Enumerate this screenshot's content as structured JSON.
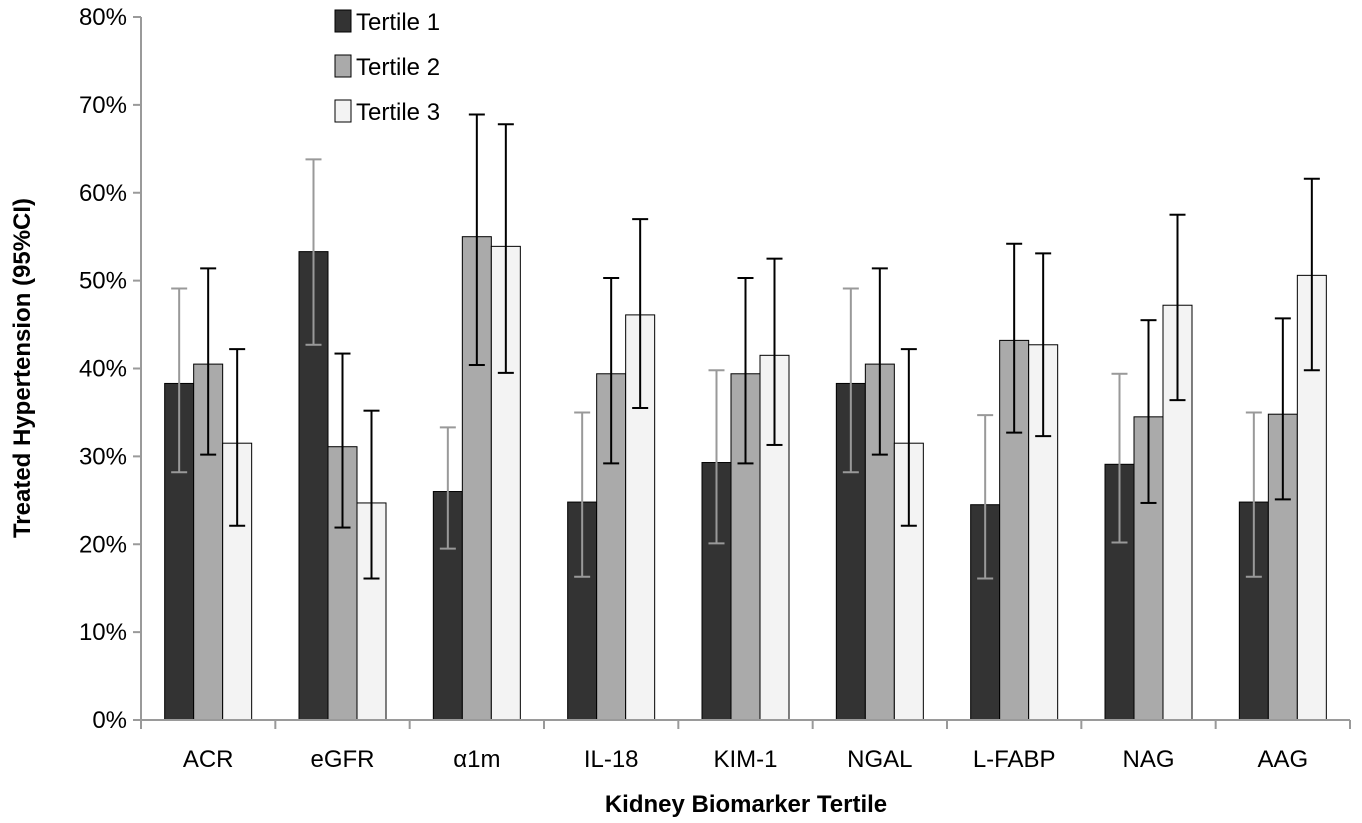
{
  "chart_data": {
    "type": "bar",
    "title": "",
    "xlabel": "Kidney Biomarker Tertile",
    "ylabel": "Treated Hypertension (95%CI)",
    "ylim": [
      0,
      80
    ],
    "yticks": [
      0,
      10,
      20,
      30,
      40,
      50,
      60,
      70,
      80
    ],
    "ytick_labels": [
      "0%",
      "10%",
      "20%",
      "30%",
      "40%",
      "50%",
      "60%",
      "70%",
      "80%"
    ],
    "categories": [
      "ACR",
      "eGFR",
      "α1m",
      "IL-18",
      "KIM-1",
      "NGAL",
      "L-FABP",
      "NAG",
      "AAG"
    ],
    "grid": false,
    "legend_position": "top-left",
    "series": [
      {
        "name": "Tertile 1",
        "color": "#333333",
        "error_color": "#999999",
        "values": [
          38.3,
          53.3,
          26.0,
          24.8,
          29.3,
          38.3,
          24.5,
          29.1,
          24.8
        ],
        "ci_low": [
          28.2,
          42.7,
          19.5,
          16.3,
          20.1,
          28.2,
          16.1,
          20.2,
          16.3
        ],
        "ci_high": [
          49.1,
          63.8,
          33.3,
          35.0,
          39.8,
          49.1,
          34.7,
          39.4,
          35.0
        ]
      },
      {
        "name": "Tertile 2",
        "color": "#aaaaaa",
        "error_color": "#000000",
        "values": [
          40.5,
          31.1,
          55.0,
          39.4,
          39.4,
          40.5,
          43.2,
          34.5,
          34.8
        ],
        "ci_low": [
          30.2,
          21.9,
          40.4,
          29.2,
          29.2,
          30.2,
          32.7,
          24.7,
          25.1
        ],
        "ci_high": [
          51.4,
          41.7,
          68.9,
          50.3,
          50.3,
          51.4,
          54.2,
          45.5,
          45.7
        ]
      },
      {
        "name": "Tertile 3",
        "color": "#f3f3f3",
        "error_color": "#000000",
        "values": [
          31.5,
          24.7,
          53.9,
          46.1,
          41.5,
          31.5,
          42.7,
          47.2,
          50.6
        ],
        "ci_low": [
          22.1,
          16.1,
          39.5,
          35.5,
          31.3,
          22.1,
          32.3,
          36.4,
          39.8
        ],
        "ci_high": [
          42.2,
          35.2,
          67.8,
          57.0,
          52.5,
          42.2,
          53.1,
          57.5,
          61.6
        ]
      }
    ]
  }
}
